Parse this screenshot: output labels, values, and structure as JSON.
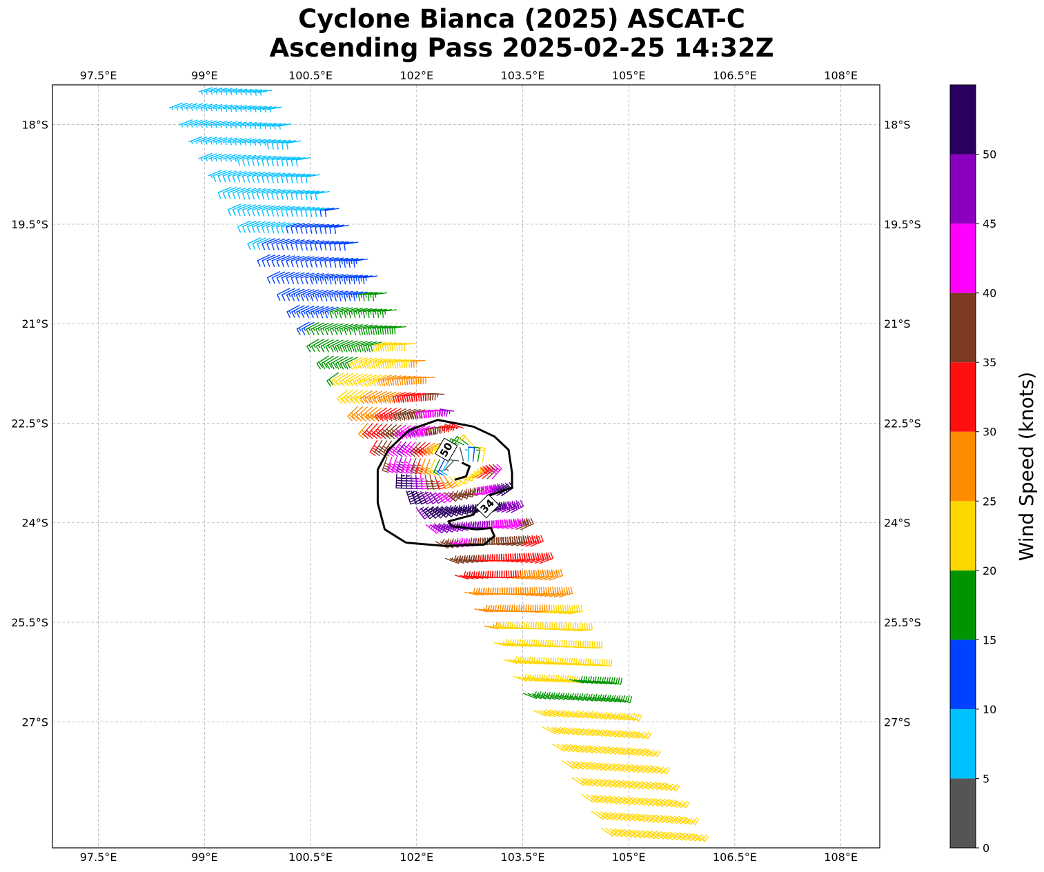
{
  "title": {
    "line1": "Cyclone Bianca (2025) ASCAT-C",
    "line2": "Ascending Pass 2025-02-25 14:32Z"
  },
  "map": {
    "lon_range": [
      96.85,
      108.55
    ],
    "lat_range": [
      -28.9,
      -17.4
    ],
    "lon_ticks": [
      97.5,
      99,
      100.5,
      102,
      103.5,
      105,
      106.5,
      108
    ],
    "lon_tick_labels": [
      "97.5°E",
      "99°E",
      "100.5°E",
      "102°E",
      "103.5°E",
      "105°E",
      "106.5°E",
      "108°E"
    ],
    "lat_ticks": [
      -18,
      -19.5,
      -21,
      -22.5,
      -24,
      -25.5,
      -27
    ],
    "lat_tick_labels": [
      "18°S",
      "19.5°S",
      "21°S",
      "22.5°S",
      "24°S",
      "25.5°S",
      "27°S"
    ],
    "grid": true,
    "grid_style": "dashed gray"
  },
  "wind_field": {
    "type": "wind barbs (ASCAT-C scatterometer swath)",
    "hemisphere": "southern",
    "swath_corners": [
      [
        98.55,
        -17.45
      ],
      [
        99.95,
        -17.45
      ],
      [
        106.05,
        -28.9
      ],
      [
        104.75,
        -28.9
      ]
    ],
    "center": [
      102.6,
      -23.1
    ],
    "max_wind_kt": 52,
    "calm_speed_kt": 5
  },
  "contours": [
    {
      "level": 34,
      "label": "34"
    },
    {
      "level": 50,
      "label": "50"
    }
  ],
  "colorbar": {
    "label": "Wind Speed (knots)",
    "ticks": [
      0,
      5,
      10,
      15,
      20,
      25,
      30,
      35,
      40,
      45,
      50
    ],
    "range": [
      0,
      55
    ],
    "colors": [
      "#555555",
      "#00bfff",
      "#0040ff",
      "#009400",
      "#ffd700",
      "#ff8c00",
      "#ff0f0f",
      "#7d3b22",
      "#ff00ff",
      "#8a00be",
      "#2a0060"
    ]
  }
}
